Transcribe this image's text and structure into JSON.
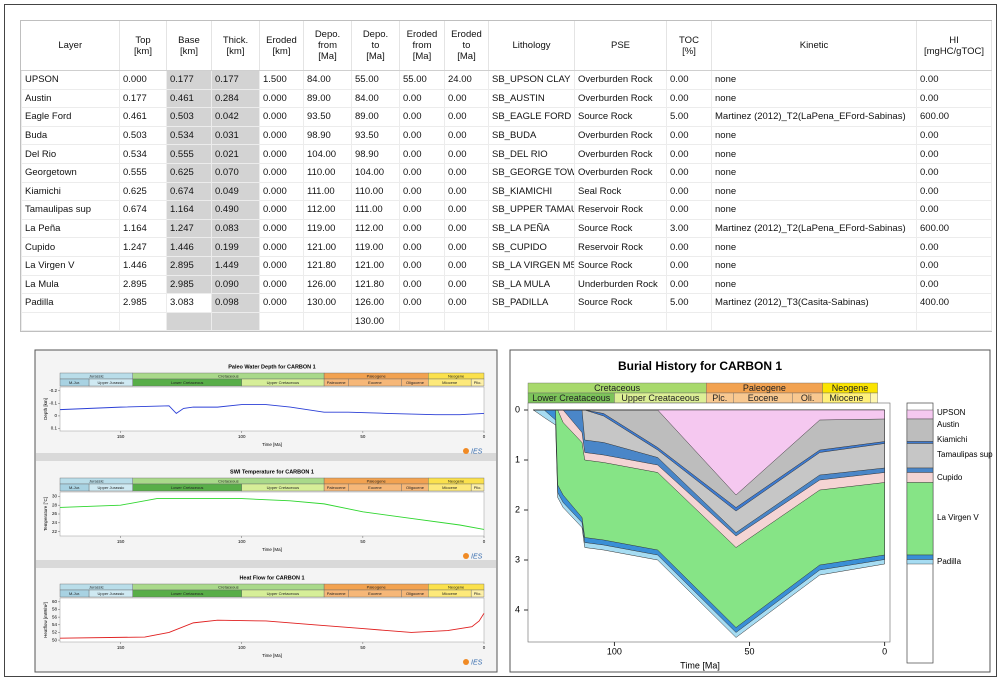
{
  "table": {
    "columns": [
      "Layer",
      "Top\n[km]",
      "Base\n[km]",
      "Thick.\n[km]",
      "Eroded\n[km]",
      "Depo.\nfrom\n[Ma]",
      "Depo.\nto\n[Ma]",
      "Eroded\nfrom\n[Ma]",
      "Eroded\nto\n[Ma]",
      "Lithology",
      "PSE",
      "TOC\n[%]",
      "Kinetic",
      "HI\n[mgHC/gTOC]"
    ],
    "rows": [
      [
        "UPSON",
        "0.000",
        "0.177",
        "0.177",
        "1.500",
        "84.00",
        "55.00",
        "55.00",
        "24.00",
        "SB_UPSON CLAY",
        "Overburden Rock",
        "0.00",
        "none",
        "0.00"
      ],
      [
        "Austin",
        "0.177",
        "0.461",
        "0.284",
        "0.000",
        "89.00",
        "84.00",
        "0.00",
        "0.00",
        "SB_AUSTIN",
        "Overburden Rock",
        "0.00",
        "none",
        "0.00"
      ],
      [
        "Eagle Ford",
        "0.461",
        "0.503",
        "0.042",
        "0.000",
        "93.50",
        "89.00",
        "0.00",
        "0.00",
        "SB_EAGLE FORD",
        "Source Rock",
        "5.00",
        "Martinez (2012)_T2(LaPena_EFord-Sabinas)",
        "600.00"
      ],
      [
        "Buda",
        "0.503",
        "0.534",
        "0.031",
        "0.000",
        "98.90",
        "93.50",
        "0.00",
        "0.00",
        "SB_BUDA",
        "Overburden Rock",
        "0.00",
        "none",
        "0.00"
      ],
      [
        "Del Rio",
        "0.534",
        "0.555",
        "0.021",
        "0.000",
        "104.00",
        "98.90",
        "0.00",
        "0.00",
        "SB_DEL RIO",
        "Overburden Rock",
        "0.00",
        "none",
        "0.00"
      ],
      [
        "Georgetown",
        "0.555",
        "0.625",
        "0.070",
        "0.000",
        "110.00",
        "104.00",
        "0.00",
        "0.00",
        "SB_GEORGE TOWN",
        "Overburden Rock",
        "0.00",
        "none",
        "0.00"
      ],
      [
        "Kiamichi",
        "0.625",
        "0.674",
        "0.049",
        "0.000",
        "111.00",
        "110.00",
        "0.00",
        "0.00",
        "SB_KIAMICHI",
        "Seal Rock",
        "0.00",
        "none",
        "0.00"
      ],
      [
        "Tamaulipas sup",
        "0.674",
        "1.164",
        "0.490",
        "0.000",
        "112.00",
        "111.00",
        "0.00",
        "0.00",
        "SB_UPPER TAMAU...",
        "Reservoir Rock",
        "0.00",
        "none",
        "0.00"
      ],
      [
        "La Peña",
        "1.164",
        "1.247",
        "0.083",
        "0.000",
        "119.00",
        "112.00",
        "0.00",
        "0.00",
        "SB_LA PEÑA",
        "Source Rock",
        "3.00",
        "Martinez (2012)_T2(LaPena_EFord-Sabinas)",
        "600.00"
      ],
      [
        "Cupido",
        "1.247",
        "1.446",
        "0.199",
        "0.000",
        "121.00",
        "119.00",
        "0.00",
        "0.00",
        "SB_CUPIDO",
        "Reservoir Rock",
        "0.00",
        "none",
        "0.00"
      ],
      [
        "La Virgen V",
        "1.446",
        "2.895",
        "1.449",
        "0.000",
        "121.80",
        "121.00",
        "0.00",
        "0.00",
        "SB_LA VIRGEN M5",
        "Source Rock",
        "0.00",
        "none",
        "0.00"
      ],
      [
        "La Mula",
        "2.895",
        "2.985",
        "0.090",
        "0.000",
        "126.00",
        "121.80",
        "0.00",
        "0.00",
        "SB_LA MULA",
        "Underburden Rock",
        "0.00",
        "none",
        "0.00"
      ],
      [
        "Padilla",
        "2.985",
        "3.083",
        "0.098",
        "0.000",
        "130.00",
        "126.00",
        "0.00",
        "0.00",
        "SB_PADILLA",
        "Source Rock",
        "5.00",
        "Martinez (2012)_T3(Casita-Sabinas)",
        "400.00"
      ]
    ],
    "final_depo_to": "130.00"
  },
  "time_series_panel": {
    "time_scale": {
      "periods": [
        {
          "name": "Jurassic",
          "start": 175,
          "end": 145,
          "color": "#b9dde9"
        },
        {
          "name": "Cretaceous",
          "start": 145,
          "end": 66,
          "color": "#a9d98a"
        },
        {
          "name": "Paleogene",
          "start": 66,
          "end": 23,
          "color": "#f2a250"
        },
        {
          "name": "Neogene",
          "start": 23,
          "end": 0,
          "color": "#fbe14c"
        }
      ],
      "epochs": [
        {
          "name": "M-Jur.",
          "start": 175,
          "end": 163,
          "color": "#a8d2e2"
        },
        {
          "name": "Upper Jurassic",
          "start": 163,
          "end": 145,
          "color": "#cfe9f2"
        },
        {
          "name": "Lower Cretaceous",
          "start": 145,
          "end": 100,
          "color": "#58ae48"
        },
        {
          "name": "Upper Cretaceous",
          "start": 100,
          "end": 66,
          "color": "#d6ee98"
        },
        {
          "name": "Paleocene",
          "start": 66,
          "end": 56,
          "color": "#f6b778"
        },
        {
          "name": "Eocene",
          "start": 56,
          "end": 34,
          "color": "#f6b778"
        },
        {
          "name": "Oligocene",
          "start": 34,
          "end": 23,
          "color": "#f6b778"
        },
        {
          "name": "Miocene",
          "start": 23,
          "end": 5.3,
          "color": "#fde97a"
        },
        {
          "name": "Plio.",
          "start": 5.3,
          "end": 0,
          "color": "#fdf0a8"
        }
      ]
    },
    "charts": [
      {
        "type": "line",
        "title": "Paleo Water Depth for CARBON 1",
        "xlabel": "Time [Ma]",
        "ylabel": "Depth [km]",
        "logo": "IES",
        "xlim": [
          175,
          0
        ],
        "xticks": [
          150,
          100,
          50,
          0
        ],
        "ylim": [
          -0.23,
          0.12
        ],
        "yticks": [
          -0.2,
          -0.1,
          0,
          0.1
        ],
        "x": [
          175,
          150,
          130,
          127,
          124,
          120,
          110,
          100,
          90,
          80,
          66,
          56,
          40,
          20,
          10,
          0
        ],
        "series": [
          {
            "color": "#2b3fd6",
            "values": [
              -0.05,
              -0.07,
              -0.08,
              -0.02,
              -0.06,
              -0.07,
              -0.07,
              -0.09,
              -0.09,
              -0.07,
              -0.03,
              -0.03,
              -0.02,
              -0.01,
              -0.01,
              -0.02
            ]
          }
        ]
      },
      {
        "type": "line",
        "title": "SWI Temperature for CARBON 1",
        "xlabel": "Time [Ma]",
        "ylabel": "Temperature [°C]",
        "logo": "IES",
        "xlim": [
          175,
          0
        ],
        "xticks": [
          150,
          100,
          50,
          0
        ],
        "ylim": [
          31,
          21
        ],
        "yticks": [
          30,
          28,
          26,
          24,
          22
        ],
        "x": [
          175,
          150,
          135,
          100,
          80,
          66,
          50,
          30,
          10,
          0
        ],
        "series": [
          {
            "color": "#2fd62f",
            "values": [
              27.5,
              28,
              29.5,
              29.5,
              29,
              28.3,
              26.5,
              25,
              23.5,
              22.5
            ]
          }
        ]
      },
      {
        "type": "line",
        "title": "Heat Flow for CARBON 1",
        "xlabel": "Time [Ma]",
        "ylabel": "Heatflow [mW/m²]",
        "logo": "IES",
        "xlim": [
          175,
          0
        ],
        "xticks": [
          150,
          100,
          50,
          0
        ],
        "ylim": [
          61,
          49.5
        ],
        "yticks": [
          60,
          58,
          56,
          54,
          52,
          50
        ],
        "x": [
          175,
          140,
          130,
          120,
          110,
          90,
          70,
          50,
          30,
          15,
          5,
          2,
          0
        ],
        "series": [
          {
            "color": "#e02020",
            "values": [
              50.5,
              50.8,
              52,
              54.5,
              55.2,
              55,
              54,
              53,
              52,
              52.5,
              53.5,
              55,
              57
            ]
          }
        ]
      }
    ]
  },
  "burial_history": {
    "type": "area",
    "title": "Burial History for CARBON 1",
    "xlabel": "Time [Ma]",
    "xlim": [
      132,
      -2
    ],
    "xticks": [
      100,
      50,
      0
    ],
    "ylim": [
      -0.14,
      4.64
    ],
    "yticks": [
      0,
      1,
      2,
      3,
      4
    ],
    "periods": [
      {
        "name": "Cretaceous",
        "start": 145,
        "end": 66,
        "color": "#a8d96c"
      },
      {
        "name": "Paleogene",
        "start": 66,
        "end": 23,
        "color": "#f2a250"
      },
      {
        "name": "Neogene",
        "start": 23,
        "end": 2.6,
        "color": "#fbe400"
      }
    ],
    "epochs": [
      {
        "name": "Lower Creataceous",
        "start": 145,
        "end": 100,
        "color": "#7cc35a"
      },
      {
        "name": "Upper Creataceous",
        "start": 100,
        "end": 66,
        "color": "#dcef96"
      },
      {
        "name": "Plc.",
        "start": 66,
        "end": 56,
        "color": "#f8c890"
      },
      {
        "name": "Eocene",
        "start": 56,
        "end": 34,
        "color": "#f8c890"
      },
      {
        "name": "Oli.",
        "start": 34,
        "end": 23,
        "color": "#f8c890"
      },
      {
        "name": "Miocene",
        "start": 23,
        "end": 5.3,
        "color": "#fff07a"
      },
      {
        "name": null,
        "start": 5.3,
        "end": 2.6,
        "color": "#fff7b0"
      }
    ],
    "x": [
      130,
      126,
      121.8,
      121,
      119,
      112,
      111,
      104,
      84,
      55,
      24,
      0
    ],
    "series": [
      {
        "color": "#f5c8f0",
        "values": [
          0,
          0,
          0,
          0,
          0,
          0,
          0,
          0,
          0,
          1.7,
          0.2,
          0.18
        ]
      },
      {
        "color": "#bdbdbd",
        "values": [
          0,
          0,
          0,
          0,
          0,
          0,
          0,
          0.07,
          0.75,
          1.95,
          0.8,
          0.63
        ]
      },
      {
        "color": "#3d7ad0",
        "values": [
          0,
          0,
          0,
          0,
          0,
          0,
          0,
          0.12,
          0.8,
          2.02,
          0.85,
          0.67
        ]
      },
      {
        "color": "#c6c6c6",
        "values": [
          0,
          0,
          0,
          0,
          0,
          0,
          0.6,
          0.65,
          0.95,
          2.45,
          1.3,
          1.16
        ]
      },
      {
        "color": "#4a86c8",
        "values": [
          0,
          0,
          0,
          0,
          0,
          0.45,
          0.85,
          0.9,
          1.1,
          2.52,
          1.4,
          1.25
        ]
      },
      {
        "color": "#f4d4d4",
        "values": [
          0,
          0,
          0,
          0,
          0.25,
          0.65,
          1.0,
          1.05,
          1.25,
          2.75,
          1.6,
          1.45
        ]
      },
      {
        "color": "#86e486",
        "values": [
          0,
          0,
          0,
          1.5,
          1.7,
          2.15,
          2.55,
          2.6,
          2.8,
          4.35,
          3.1,
          2.9
        ]
      },
      {
        "color": "#3a8fd6",
        "values": [
          0,
          0,
          0.2,
          1.65,
          1.85,
          2.25,
          2.65,
          2.7,
          2.9,
          4.45,
          3.2,
          2.99
        ]
      },
      {
        "color": "#a6dcf2",
        "values": [
          0,
          0.15,
          0.3,
          1.75,
          1.95,
          2.35,
          2.75,
          2.8,
          3.0,
          4.55,
          3.3,
          3.08
        ]
      }
    ],
    "legend_labels": [
      "UPSON",
      "Austin",
      "Kiamichi",
      "Tamaulipas sup",
      "Cupido",
      "La Virgen V",
      "Padilla"
    ]
  }
}
